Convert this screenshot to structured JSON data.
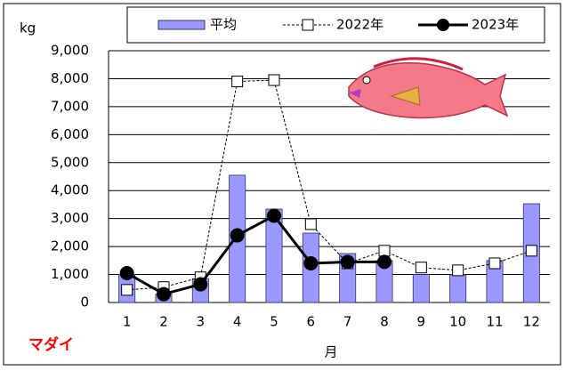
{
  "chart_data": {
    "type": "bar",
    "title": "マダイ",
    "y_label": "kg",
    "x_label": "月",
    "categories": [
      "1",
      "2",
      "3",
      "4",
      "5",
      "6",
      "7",
      "8",
      "9",
      "10",
      "11",
      "12"
    ],
    "series": [
      {
        "name": "平均",
        "type": "bar",
        "color": "#9999ff",
        "values": [
          1000,
          300,
          850,
          4550,
          3340,
          2480,
          1750,
          1500,
          1000,
          990,
          1500,
          3530
        ]
      },
      {
        "name": "2022年",
        "type": "line",
        "style": "dashed",
        "marker": "open-square",
        "color": "#000000",
        "values": [
          450,
          550,
          900,
          7900,
          7950,
          2800,
          1400,
          1850,
          1250,
          1150,
          1400,
          1850
        ]
      },
      {
        "name": "2023年",
        "type": "line",
        "style": "solid",
        "marker": "filled-circle",
        "color": "#000000",
        "values": [
          1050,
          300,
          650,
          2400,
          3100,
          1400,
          1450,
          1450,
          null,
          null,
          null,
          null
        ]
      }
    ],
    "ylim": [
      0,
      9000
    ],
    "yticks": [
      0,
      {
        "value": 1000,
        "label": "1,000"
      },
      {
        "value": 2000,
        "label": "2,000"
      },
      {
        "value": 3000,
        "label": "3,000"
      },
      {
        "value": 4000,
        "label": "4,000"
      },
      {
        "value": 5000,
        "label": "5,000"
      },
      {
        "value": 6000,
        "label": "6,000"
      },
      {
        "value": 7000,
        "label": "7,000"
      },
      {
        "value": 8000,
        "label": "8,000"
      },
      {
        "value": 9000,
        "label": "9,000"
      }
    ],
    "grid": true
  }
}
